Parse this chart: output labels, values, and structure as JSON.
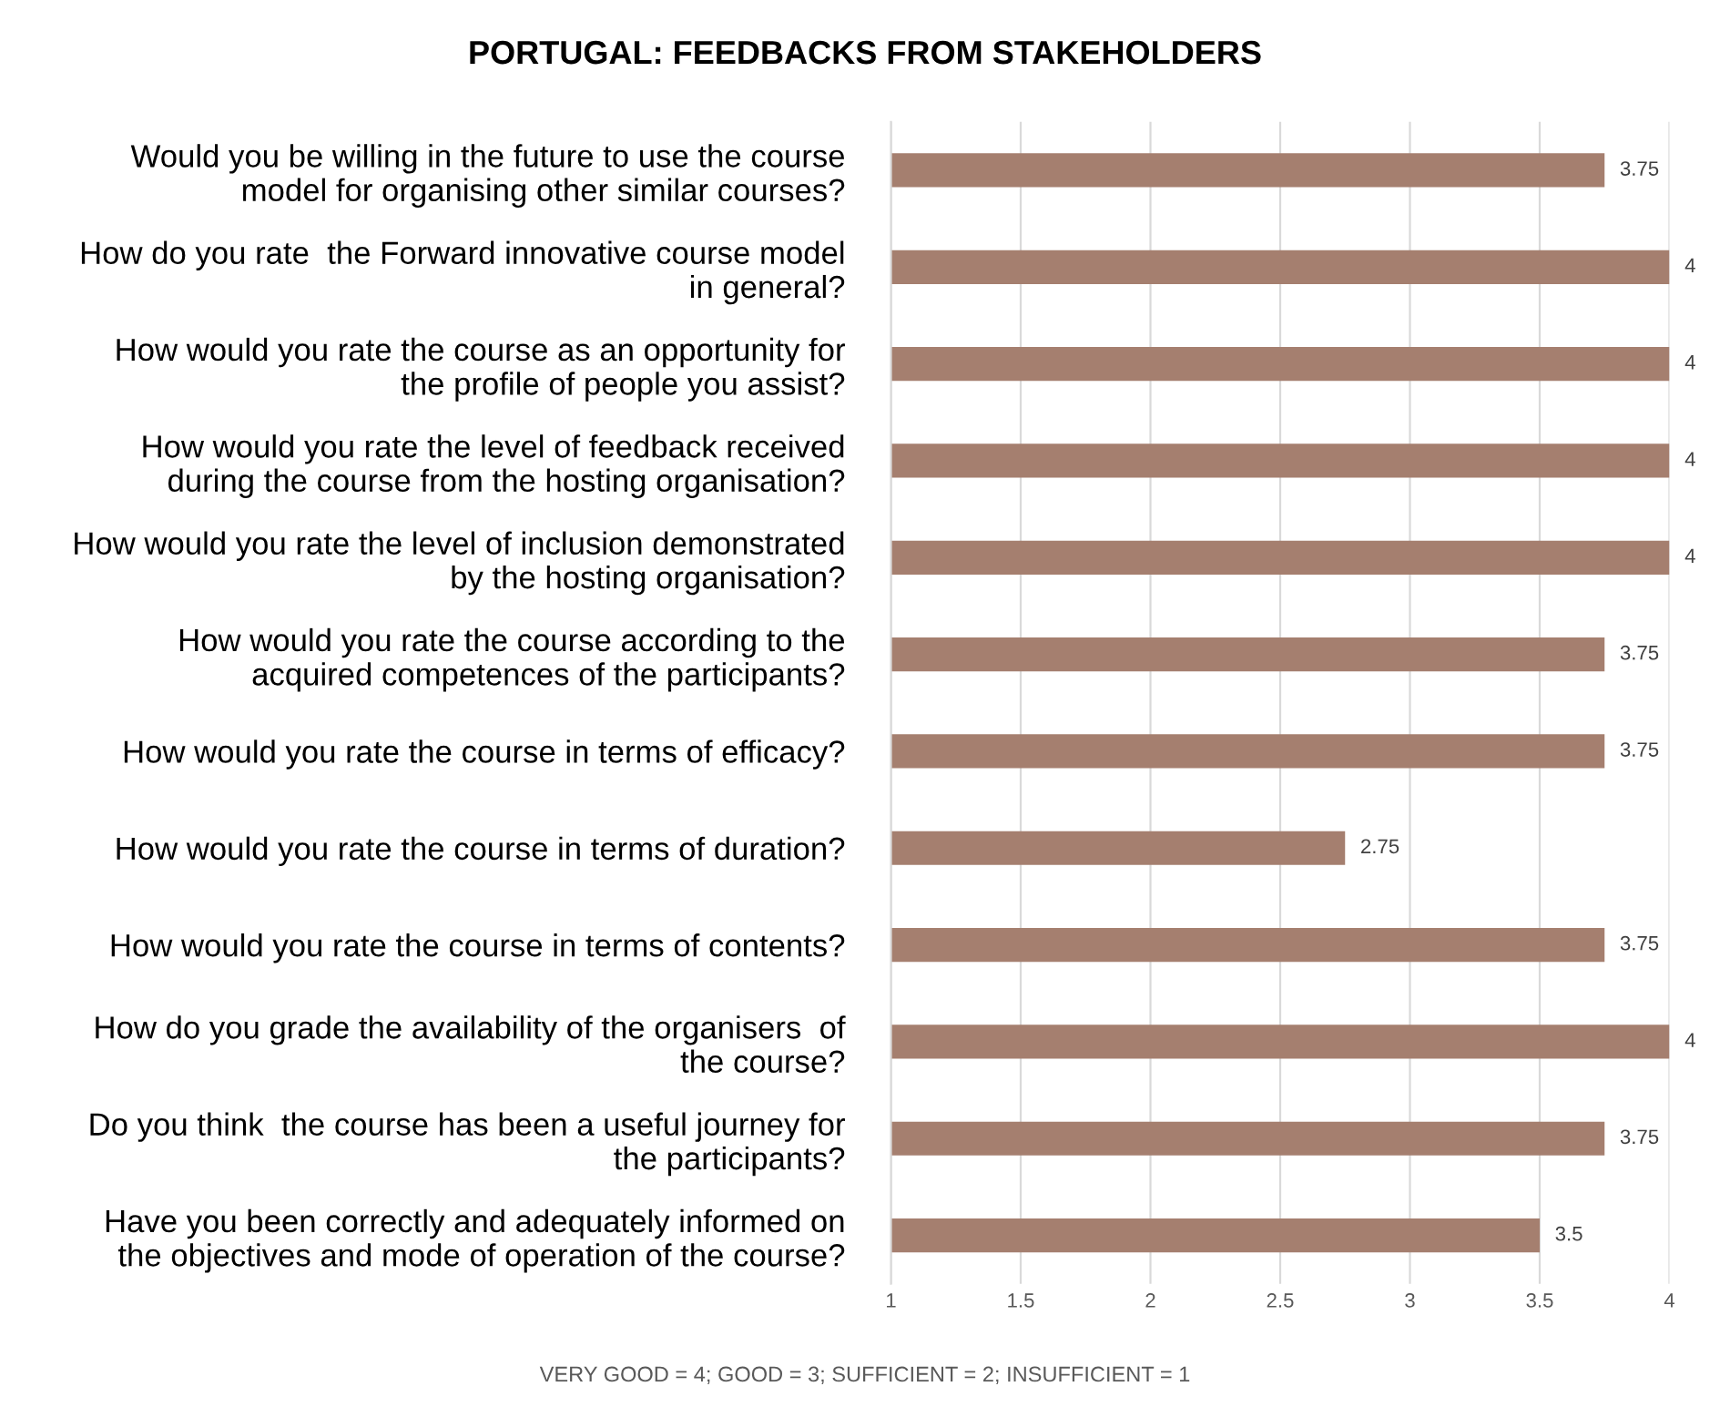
{
  "chart_data": {
    "type": "bar",
    "orientation": "horizontal",
    "title": "PORTUGAL: FEEDBACKS FROM STAKEHOLDERS",
    "categories": [
      "Would you be willing in the future to use the course\nmodel for organising other similar courses?",
      "How do you rate  the Forward innovative course model\nin general?",
      "How would you rate the course as an opportunity for\nthe profile of people you assist?",
      "How would you rate the level of feedback received\nduring the course from the hosting organisation?",
      "How would you rate the level of inclusion demonstrated\nby the hosting organisation?",
      "How would you rate the course according to the\nacquired competences of the participants?",
      "How would you rate the course in terms of efficacy?",
      "How would you rate the course in terms of duration?",
      "How would you rate the course in terms of contents?",
      "How do you grade the availability of the organisers  of\nthe course?",
      "Do you think  the course has been a useful journey for\nthe participants?",
      "Have you been correctly and adequately informed on\nthe objectives and mode of operation of the course?"
    ],
    "values": [
      3.75,
      4,
      4,
      4,
      4,
      3.75,
      3.75,
      2.75,
      3.75,
      4,
      3.75,
      3.5
    ],
    "color": "#a57f6f",
    "xlim": [
      1,
      4
    ],
    "xticks": [
      1,
      1.5,
      2,
      2.5,
      3,
      3.5,
      4
    ],
    "grid": "x",
    "data_labels": true,
    "annotations": [
      "VERY GOOD = 4; GOOD = 3; SUFFICIENT = 2; INSUFFICIENT = 1"
    ]
  }
}
